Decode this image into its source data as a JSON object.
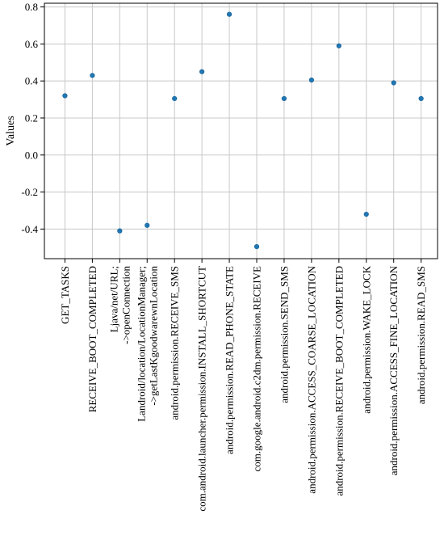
{
  "chart_data": {
    "type": "scatter",
    "ylabel": "Values",
    "xlabel": "",
    "title": "",
    "ylim": [
      -0.56,
      0.82
    ],
    "yticks": [
      -0.4,
      -0.2,
      0.0,
      0.2,
      0.4,
      0.6,
      0.8
    ],
    "ytick_labels": [
      "-0.4",
      "-0.2",
      "0.0",
      "0.2",
      "0.4",
      "0.6",
      "0.8"
    ],
    "grid": true,
    "marker_color": "#1f77b4",
    "categories": [
      [
        "GET_TASKS"
      ],
      [
        "RECEIVE_BOOT_COMPLETED"
      ],
      [
        "Ljava/net/URL;",
        "->openConnection"
      ],
      [
        "Landroid/location/LocationManager;",
        "->getLastKgoodwarewnLocation"
      ],
      [
        "android.permission.RECEIVE_SMS"
      ],
      [
        "com.android.launcher.permission.INSTALL_SHORTCUT"
      ],
      [
        "android.permission.READ_PHONE_STATE"
      ],
      [
        "com.google.android.c2dm.permission.RECEIVE"
      ],
      [
        "android.permission.SEND_SMS"
      ],
      [
        "android.permission.ACCESS_COARSE_LOCATION"
      ],
      [
        "android.permission.RECEIVE_BOOT_COMPLETED"
      ],
      [
        "android.permission.WAKE_LOCK"
      ],
      [
        "android.permission.ACCESS_FINE_LOCATION"
      ],
      [
        "android.permission.READ_SMS"
      ]
    ],
    "values": [
      0.32,
      0.43,
      -0.41,
      -0.38,
      0.305,
      0.45,
      0.76,
      -0.495,
      0.305,
      0.405,
      0.59,
      -0.32,
      0.39,
      0.305
    ]
  }
}
